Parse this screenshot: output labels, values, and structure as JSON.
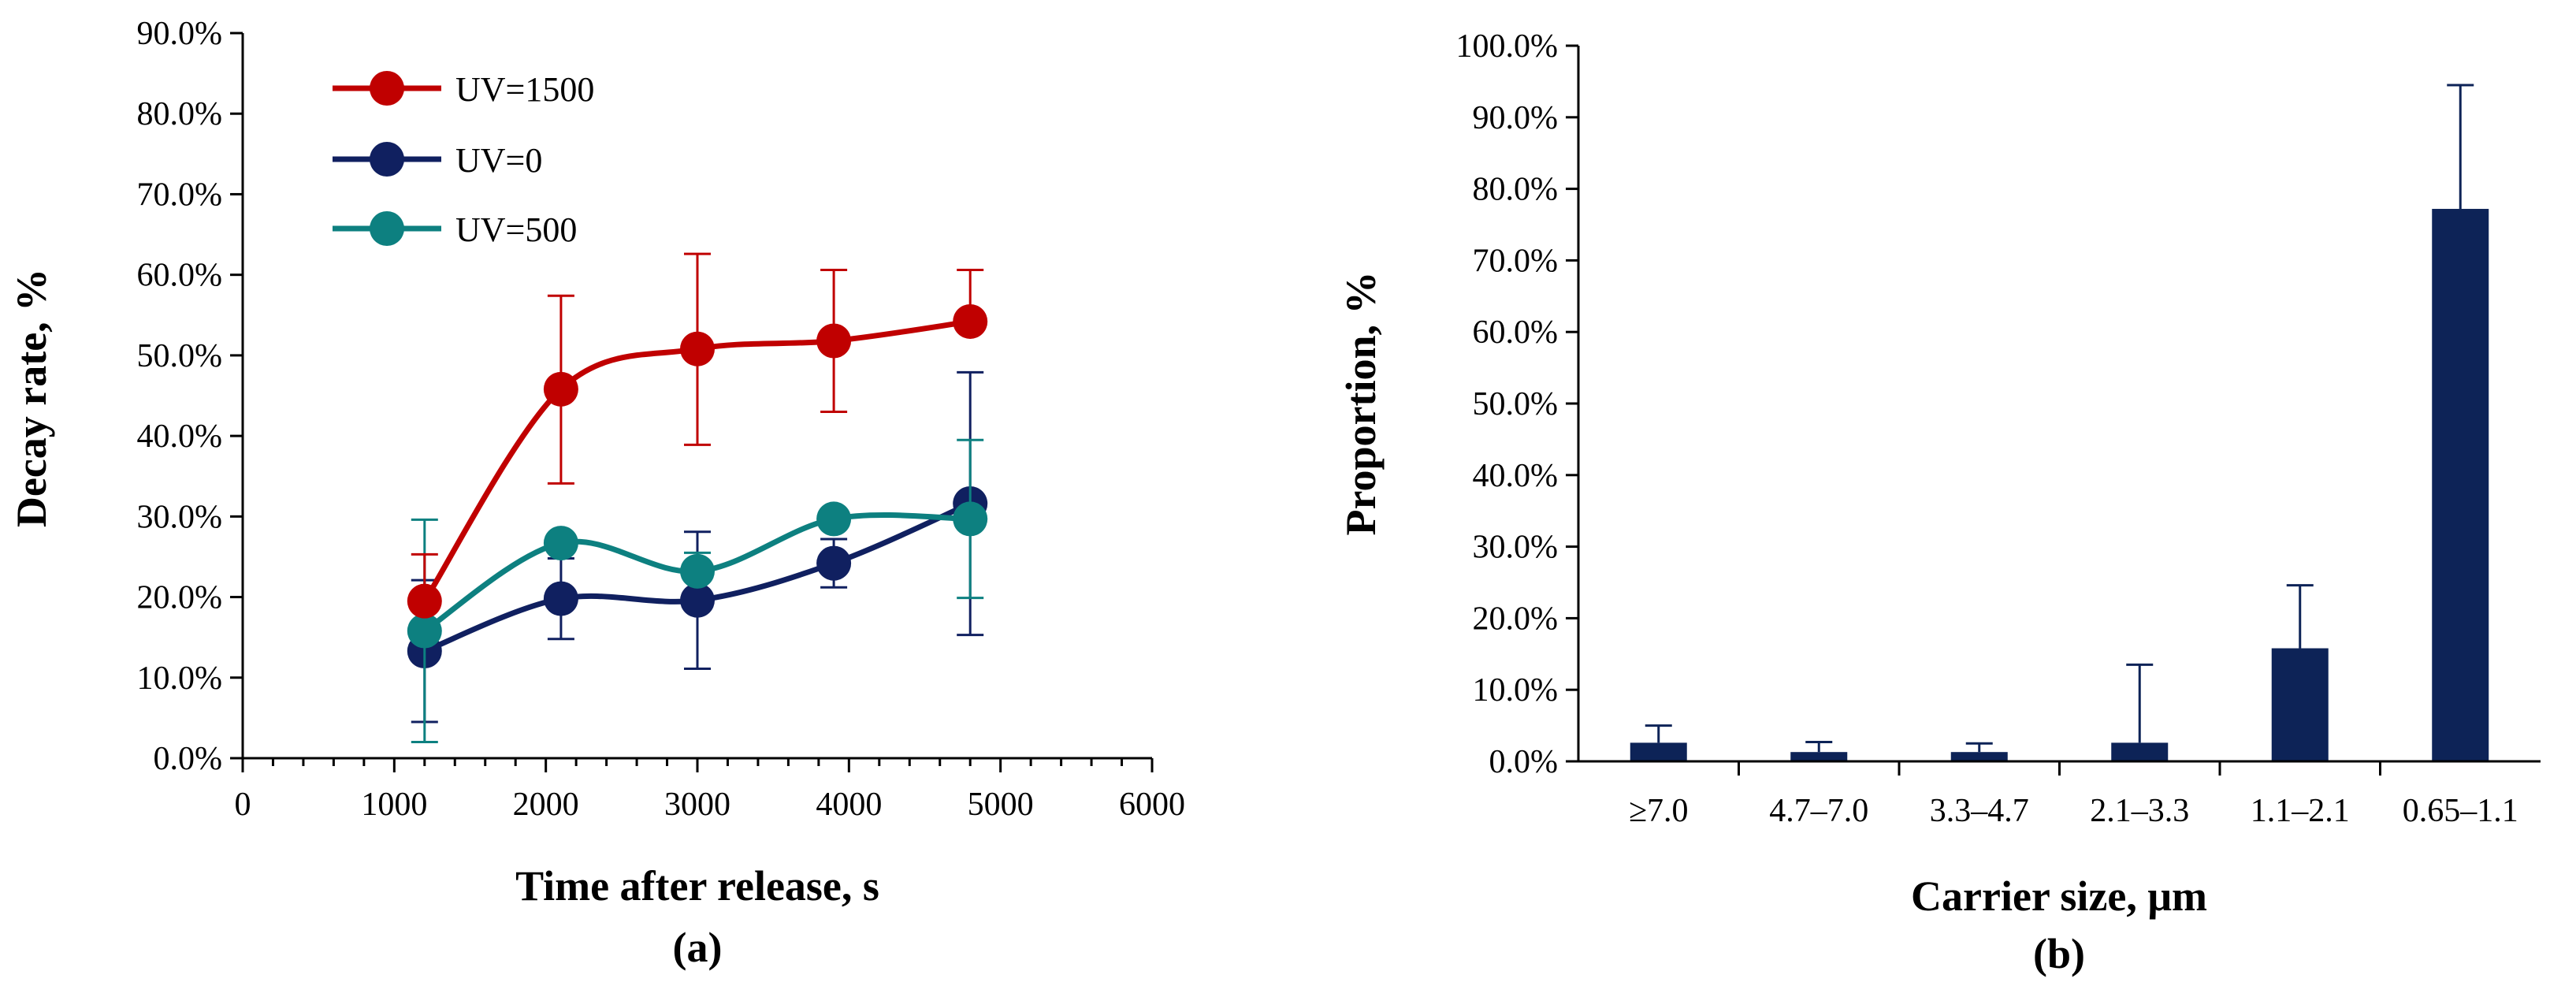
{
  "chart_data": [
    {
      "type": "line",
      "panel_label": "(a)",
      "xlabel": "Time after release, s",
      "ylabel": "Decay rate, %",
      "xlim": [
        0,
        6000
      ],
      "ylim": [
        0,
        90
      ],
      "x_ticks": [
        "0",
        "1000",
        "2000",
        "3000",
        "4000",
        "5000",
        "6000"
      ],
      "y_ticks": [
        "0.0%",
        "10.0%",
        "20.0%",
        "30.0%",
        "40.0%",
        "50.0%",
        "60.0%",
        "70.0%",
        "80.0%",
        "90.0%"
      ],
      "grid": false,
      "legend_position": "top-left",
      "series": [
        {
          "name": "UV=1500",
          "color": "#c00000",
          "x": [
            1200,
            2100,
            3000,
            3900,
            4800
          ],
          "values": [
            19.5,
            45.8,
            50.8,
            51.8,
            54.2
          ],
          "err_low": [
            null,
            11.7,
            11.9,
            8.8,
            0
          ],
          "err_high": [
            5.8,
            11.6,
            11.8,
            8.8,
            6.4
          ]
        },
        {
          "name": "UV=0",
          "color": "#102060",
          "x": [
            1200,
            2100,
            3000,
            3900,
            4800
          ],
          "values": [
            13.3,
            19.8,
            19.6,
            24.2,
            31.6
          ],
          "err_low": [
            8.8,
            5.0,
            8.5,
            3.0,
            16.3
          ],
          "err_high": [
            8.8,
            5.0,
            8.5,
            3.0,
            16.3
          ]
        },
        {
          "name": "UV=500",
          "color": "#0d8080",
          "x": [
            1200,
            2100,
            3000,
            3900,
            4800
          ],
          "values": [
            15.8,
            26.7,
            23.2,
            29.7,
            29.7
          ],
          "err_low": [
            13.8,
            0.6,
            0.6,
            0.6,
            9.8
          ],
          "err_high": [
            13.8,
            0.6,
            2.3,
            0.6,
            9.8
          ]
        }
      ]
    },
    {
      "type": "bar",
      "panel_label": "(b)",
      "xlabel": "Carrier size, μm",
      "ylabel": "Proportion, %",
      "ylim": [
        0,
        100
      ],
      "y_ticks": [
        "0.0%",
        "10.0%",
        "20.0%",
        "30.0%",
        "40.0%",
        "50.0%",
        "60.0%",
        "70.0%",
        "80.0%",
        "90.0%",
        "100.0%"
      ],
      "grid": false,
      "bar_color": "#0d2357",
      "categories": [
        "≥7.0",
        "4.7–7.0",
        "3.3–4.7",
        "2.1–3.3",
        "1.1–2.1",
        "0.65–1.1"
      ],
      "values": [
        2.6,
        1.3,
        1.3,
        2.6,
        15.8,
        77.2
      ],
      "errors": [
        2.4,
        1.4,
        1.2,
        10.9,
        8.8,
        17.3
      ]
    }
  ]
}
